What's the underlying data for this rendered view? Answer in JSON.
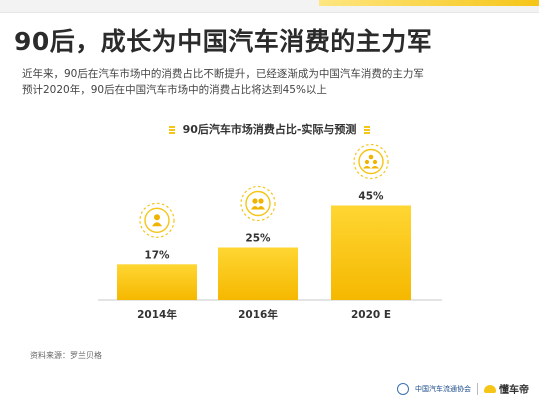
{
  "header": {
    "title": "90后，成长为中国汽车消费的主力军",
    "line1": "近年来，90后在汽车市场中的消费占比不断提升，已经逐渐成为中国汽车消费的主力军",
    "line2": "预计2020年，90后在中国汽车市场中的消费占比将达到45%以上"
  },
  "chart_data": {
    "type": "bar",
    "title": "90后汽车市场消费占比-实际与预测",
    "categories": [
      "2014年",
      "2016年",
      "2020 E"
    ],
    "values": [
      17,
      25,
      45
    ],
    "value_labels": [
      "17%",
      "25%",
      "45%"
    ],
    "icons": [
      "person-icon",
      "group-icon",
      "team-icon"
    ],
    "ylim": [
      0,
      50
    ],
    "bar_color_top": "#ffd633",
    "bar_color_bottom": "#f5b800",
    "grid": false
  },
  "source": "资料来源：罗兰贝格",
  "footer": {
    "association": "中国汽车流通协会",
    "brand": "懂车帝"
  }
}
